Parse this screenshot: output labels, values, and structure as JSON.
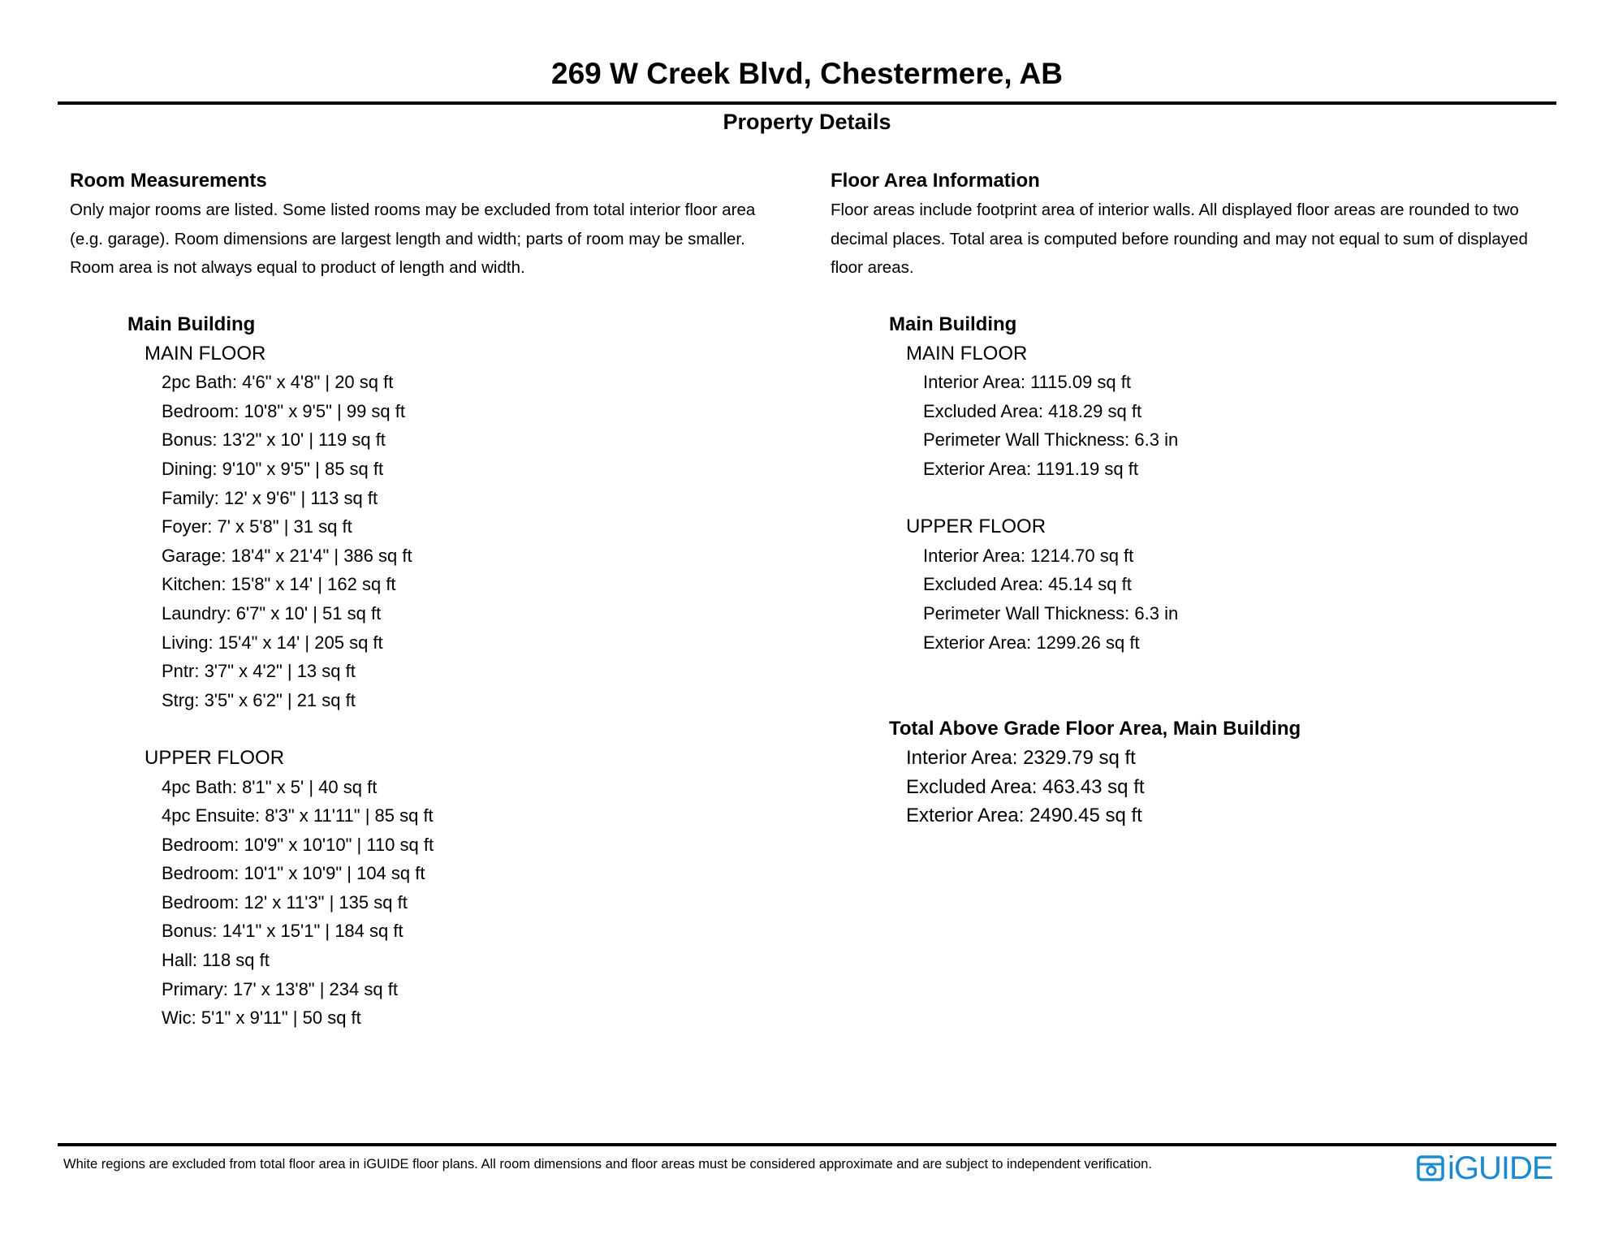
{
  "header": {
    "title": "269 W Creek Blvd, Chestermere, AB",
    "subtitle": "Property Details"
  },
  "room_measurements": {
    "heading": "Room Measurements",
    "description": [
      "Only major rooms are listed. Some listed rooms may be excluded from total interior floor area",
      "(e.g. garage). Room dimensions are largest length and width; parts of room may be smaller.",
      "Room area is not always equal to product of length and width."
    ],
    "building": "Main Building",
    "floors": [
      {
        "name": "MAIN FLOOR",
        "items": [
          "2pc Bath: 4'6\" x 4'8\" | 20 sq ft",
          "Bedroom: 10'8\" x 9'5\" | 99 sq ft",
          "Bonus: 13'2\" x 10' | 119 sq ft",
          "Dining: 9'10\" x 9'5\" | 85 sq ft",
          "Family: 12' x 9'6\" | 113 sq ft",
          "Foyer: 7' x 5'8\" | 31 sq ft",
          "Garage: 18'4\" x 21'4\" | 386 sq ft",
          "Kitchen: 15'8\" x 14' | 162 sq ft",
          "Laundry: 6'7\" x 10' | 51 sq ft",
          "Living: 15'4\" x 14' | 205 sq ft",
          "Pntr: 3'7\" x 4'2\" | 13 sq ft",
          "Strg: 3'5\" x 6'2\" | 21 sq ft"
        ]
      },
      {
        "name": "UPPER FLOOR",
        "items": [
          "4pc Bath: 8'1\" x 5' | 40 sq ft",
          "4pc Ensuite: 8'3\" x 11'11\" | 85 sq ft",
          "Bedroom: 10'9\" x 10'10\" | 110 sq ft",
          "Bedroom: 10'1\" x 10'9\" | 104 sq ft",
          "Bedroom: 12' x 11'3\" | 135 sq ft",
          "Bonus: 14'1\" x 15'1\" | 184 sq ft",
          "Hall: 118 sq ft",
          "Primary: 17' x 13'8\" | 234 sq ft",
          "Wic: 5'1\" x 9'11\" | 50 sq ft"
        ]
      }
    ]
  },
  "floor_area": {
    "heading": "Floor Area Information",
    "description": [
      "Floor areas include footprint area of interior walls. All displayed floor areas are rounded to two",
      "decimal places. Total area is computed before rounding and may not equal to sum of displayed",
      "floor areas."
    ],
    "building": "Main Building",
    "floors": [
      {
        "name": "MAIN FLOOR",
        "items": [
          "Interior Area: 1115.09 sq ft",
          "Excluded Area: 418.29 sq ft",
          "Perimeter Wall Thickness: 6.3 in",
          "Exterior Area: 1191.19 sq ft"
        ]
      },
      {
        "name": "UPPER FLOOR",
        "items": [
          "Interior Area: 1214.70 sq ft",
          "Excluded Area: 45.14 sq ft",
          "Perimeter Wall Thickness: 6.3 in",
          "Exterior Area: 1299.26 sq ft"
        ]
      }
    ],
    "total": {
      "heading": "Total Above Grade Floor Area, Main Building",
      "items": [
        "Interior Area: 2329.79 sq ft",
        "Excluded Area: 463.43 sq ft",
        "Exterior Area: 2490.45 sq ft"
      ]
    }
  },
  "footer": {
    "disclaimer": "White regions are excluded from total floor area in iGUIDE floor plans. All room dimensions and floor areas must be considered approximate and are subject to independent verification.",
    "logo": "iGUIDE",
    "logo_color": "#1a8bd0"
  }
}
